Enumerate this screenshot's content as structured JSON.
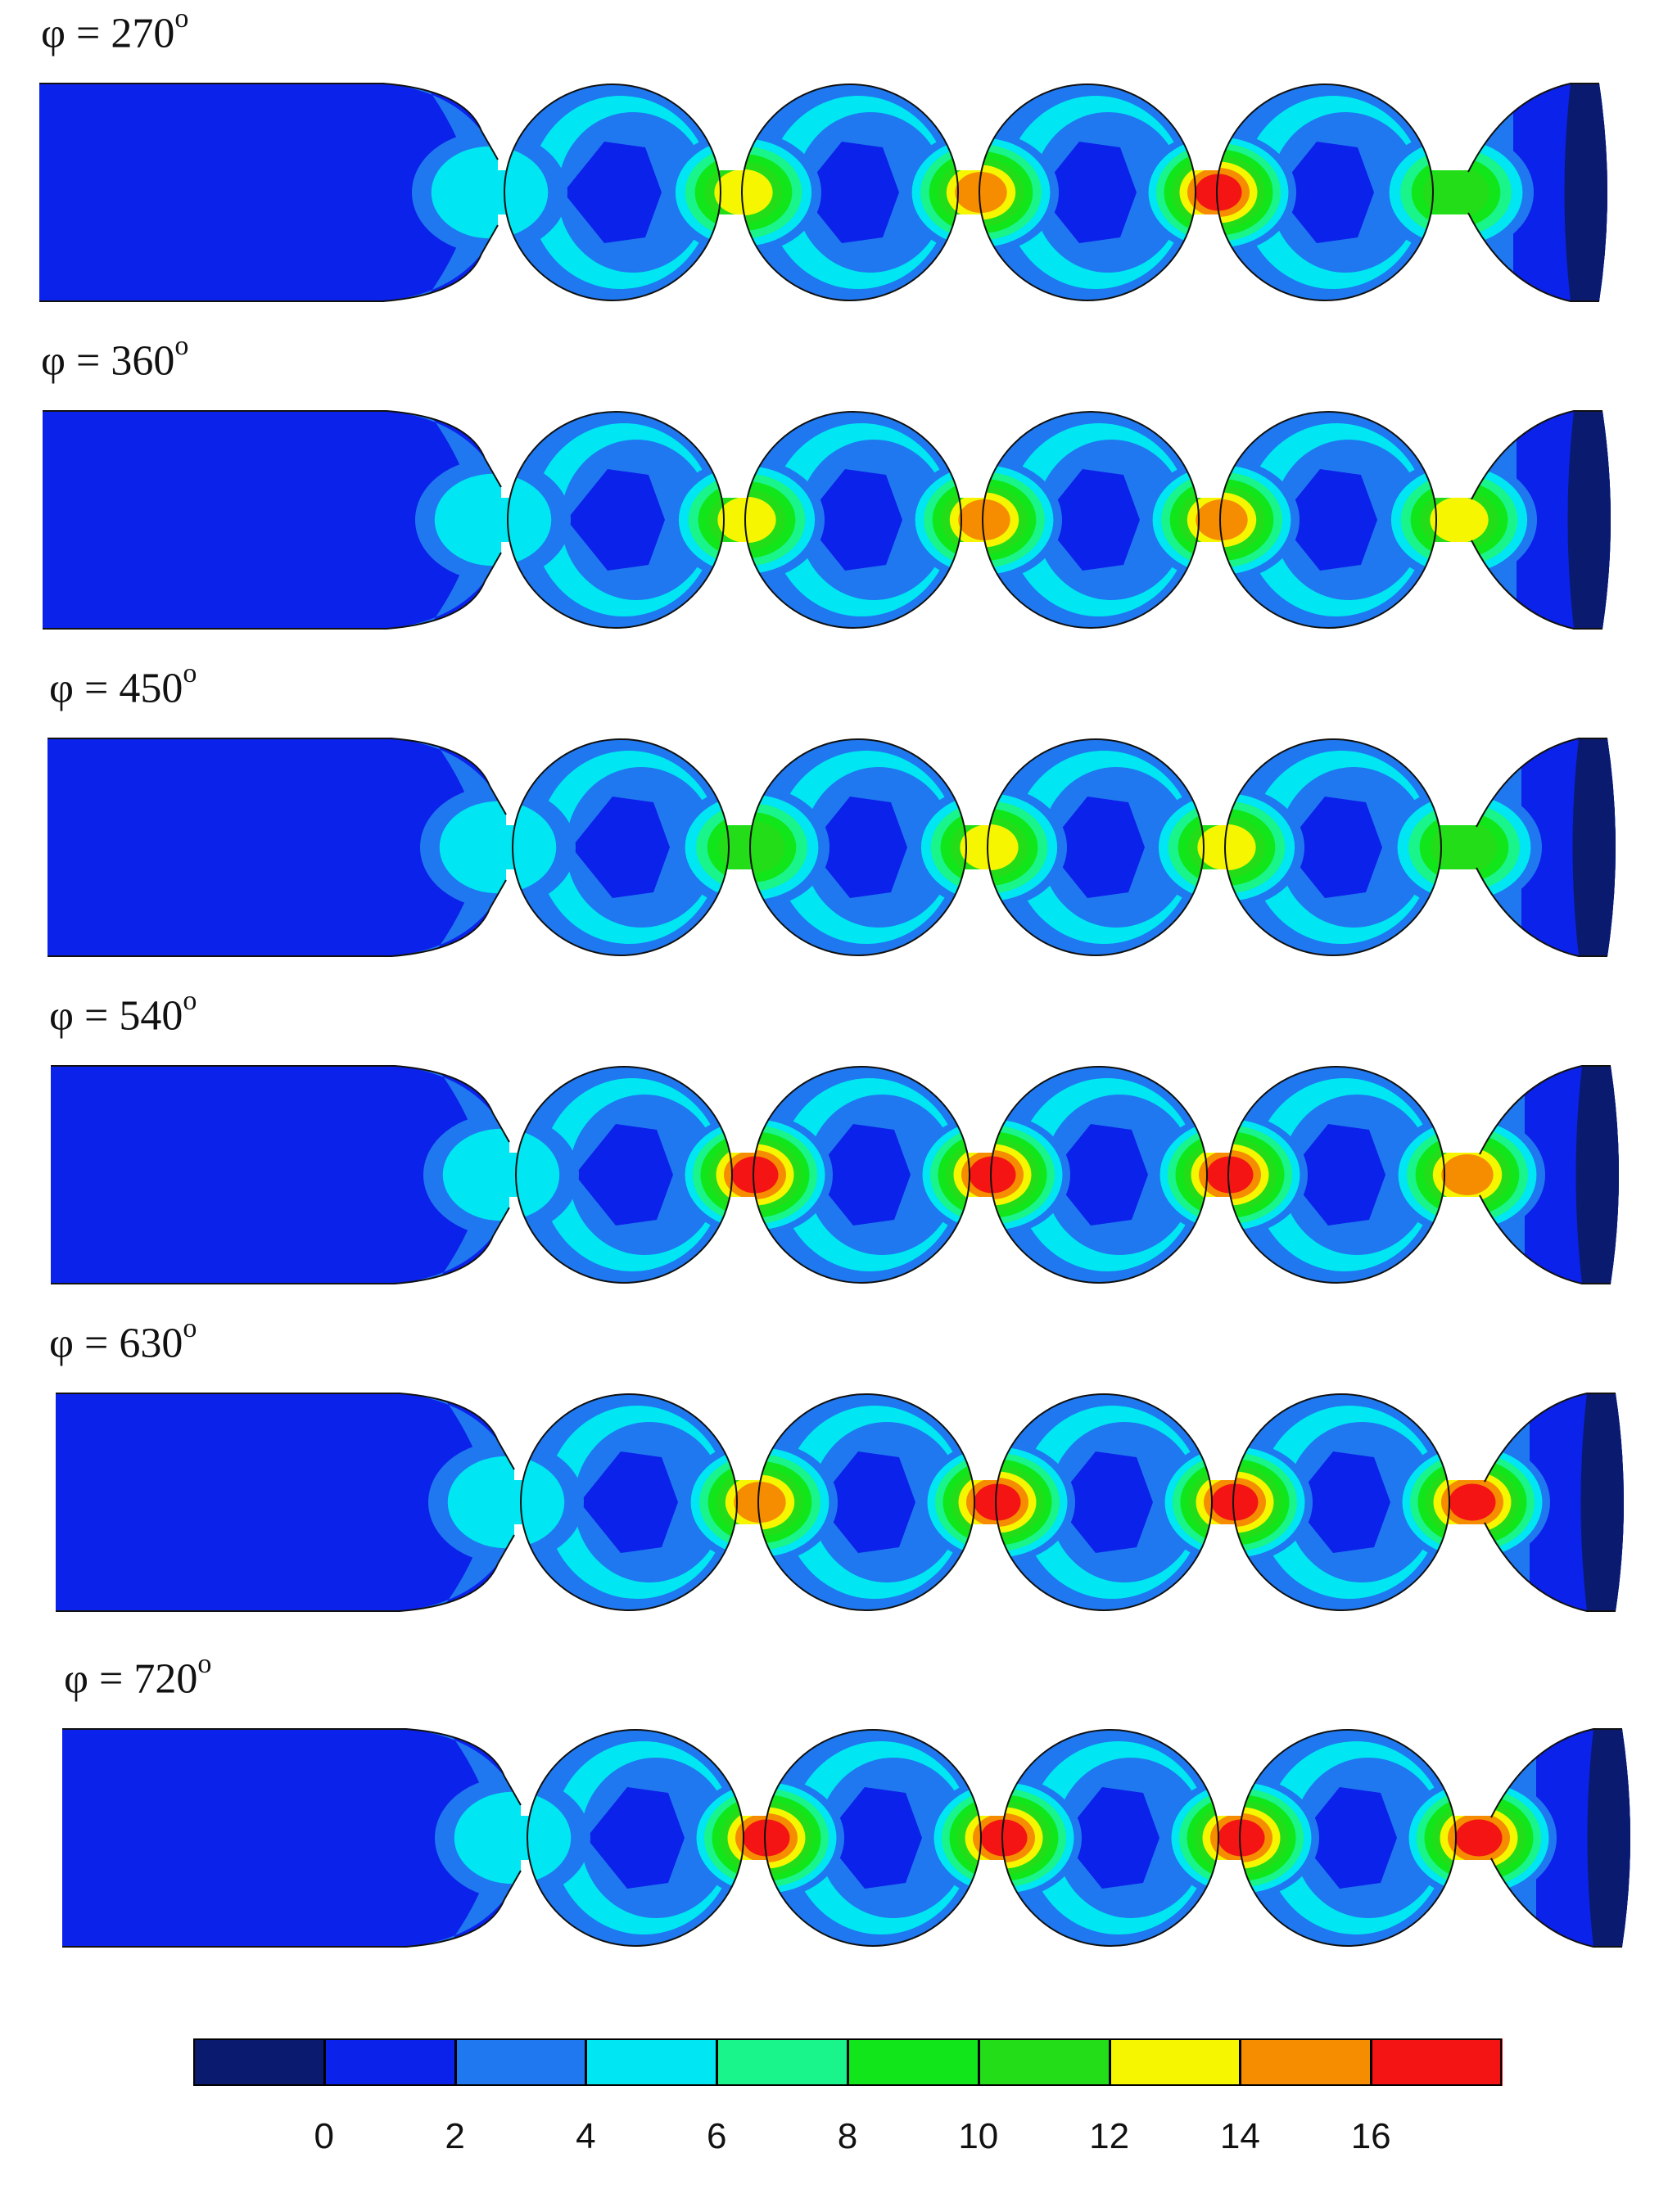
{
  "panels": [
    {
      "phi_label": "φ = 270",
      "degree_symbol": "o"
    },
    {
      "phi_label": "φ = 360",
      "degree_symbol": "o"
    },
    {
      "phi_label": "φ = 450",
      "degree_symbol": "o"
    },
    {
      "phi_label": "φ = 540",
      "degree_symbol": "o"
    },
    {
      "phi_label": "φ = 630",
      "degree_symbol": "o"
    },
    {
      "phi_label": "φ = 720",
      "degree_symbol": "o"
    }
  ],
  "colorbar": {
    "colors": [
      "#0a1a6e",
      "#0b22ea",
      "#1f78f0",
      "#00e6f2",
      "#19f58a",
      "#11e61b",
      "#22dd18",
      "#f6f600",
      "#f68c00",
      "#f41414"
    ],
    "tick_labels": [
      "0",
      "2",
      "4",
      "6",
      "8",
      "10",
      "12",
      "14",
      "16"
    ]
  }
}
